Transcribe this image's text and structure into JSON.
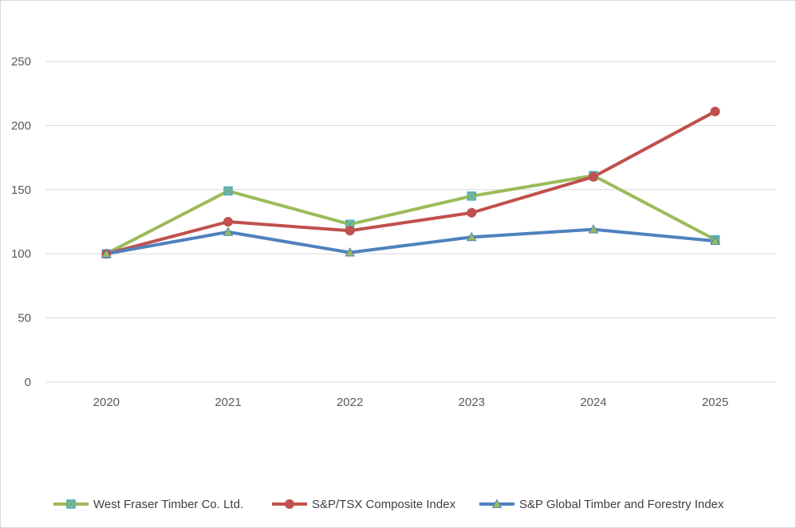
{
  "chart_data": {
    "type": "line",
    "title": "",
    "xlabel": "",
    "ylabel": "",
    "categories": [
      "2020",
      "2021",
      "2022",
      "2023",
      "2024",
      "2025"
    ],
    "ylim": [
      0,
      250
    ],
    "yticks": [
      0,
      50,
      100,
      150,
      200,
      250
    ],
    "grid": true,
    "legend_position": "bottom",
    "series": [
      {
        "name": "West Fraser Timber Co. Ltd.",
        "color": "#9bbb59",
        "marker": "square-x",
        "marker_color": "#4bacc6",
        "values": [
          100,
          149,
          123,
          145,
          161,
          111
        ]
      },
      {
        "name": "S&P/TSX Composite Index",
        "color": "#c0504d",
        "marker": "circle",
        "marker_color": "#c0504d",
        "values": [
          100,
          125,
          118,
          132,
          160,
          211
        ]
      },
      {
        "name": "S&P Global Timber and Forestry Index",
        "color": "#4f81bd",
        "marker": "triangle",
        "marker_color": "#9bbb59",
        "values": [
          100,
          117,
          101,
          113,
          119,
          110
        ]
      }
    ]
  }
}
